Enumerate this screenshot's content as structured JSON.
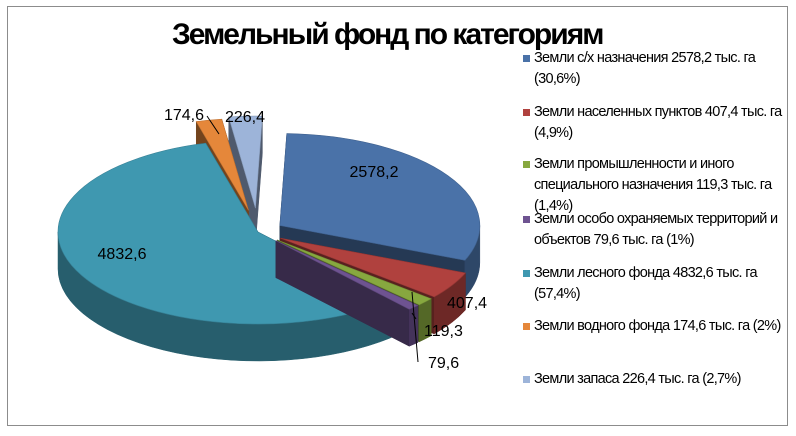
{
  "chart_data": {
    "type": "pie",
    "title": "Земельный фонд по категориям",
    "legend_position": "right",
    "exploded": true,
    "three_d": true,
    "slices": [
      {
        "label": "Земли с/х назначения 2578,2 тыс. га (30,6%)",
        "value": 2578.2,
        "data_label": "2578,2",
        "color": "#4A72A8"
      },
      {
        "label": "Земли населенных пунктов 407,4 тыс. га (4,9%)",
        "value": 407.4,
        "data_label": "407,4",
        "color": "#B0413E"
      },
      {
        "label": "Земли промышленности и иного специального назначения 119,3 тыс. га (1,4%)",
        "value": 119.3,
        "data_label": "119,3",
        "color": "#87A83F"
      },
      {
        "label": "Земли особо охраняемых территорий и объектов 79,6 тыс. га (1%)",
        "value": 79.6,
        "data_label": "79,6",
        "color": "#6E5391"
      },
      {
        "label": "Земли лесного фонда 4832,6 тыс. га (57,4%)",
        "value": 4832.6,
        "data_label": "4832,6",
        "color": "#3F98B0"
      },
      {
        "label": "Земли водного фонда 174,6 тыс. га (2%)",
        "value": 174.6,
        "data_label": "174,6",
        "color": "#E5873A"
      },
      {
        "label": "Земли запаса 226,4 тыс. га (2,7%)",
        "value": 226.4,
        "data_label": "226,4",
        "color": "#9DB4D9"
      }
    ]
  }
}
